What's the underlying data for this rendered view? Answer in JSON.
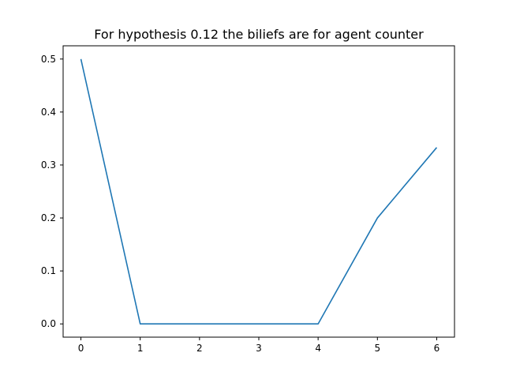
{
  "chart_data": {
    "type": "line",
    "title": "For hypothesis 0.12 the biliefs are for agent counter",
    "xlabel": "",
    "ylabel": "",
    "x": [
      0,
      1,
      2,
      3,
      4,
      5,
      6
    ],
    "series": [
      {
        "values": [
          0.5,
          0.0,
          0.0,
          0.0,
          0.0,
          0.2,
          0.333
        ],
        "color": "#1f77b4"
      }
    ],
    "xlim": [
      -0.3,
      6.3
    ],
    "ylim": [
      -0.025,
      0.525
    ],
    "xticks": [
      0,
      1,
      2,
      3,
      4,
      5,
      6
    ],
    "xtick_labels": [
      "0",
      "1",
      "2",
      "3",
      "4",
      "5",
      "6"
    ],
    "yticks": [
      0.0,
      0.1,
      0.2,
      0.3,
      0.4,
      0.5
    ],
    "ytick_labels": [
      "0.0",
      "0.1",
      "0.2",
      "0.3",
      "0.4",
      "0.5"
    ],
    "grid": false,
    "legend": "none"
  }
}
